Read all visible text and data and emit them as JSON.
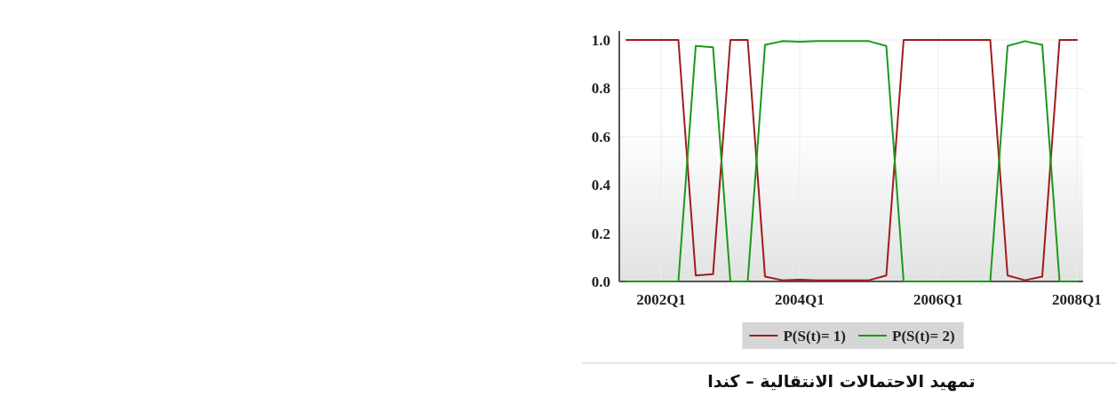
{
  "chart_data": {
    "type": "line",
    "title": "تمهيد الاحتمالات الانتقالية – كندا",
    "categories": [
      null,
      null,
      "2002Q1",
      null,
      null,
      null,
      null,
      null,
      null,
      null,
      "2004Q1",
      null,
      null,
      null,
      null,
      null,
      null,
      null,
      "2006Q1",
      null,
      null,
      null,
      null,
      null,
      null,
      null,
      "2008Q1"
    ],
    "series": [
      {
        "name": "P(S(t)= 1)",
        "color": "#a01c1c",
        "values": [
          1,
          1,
          1,
          1,
          0.025,
          0.03,
          1,
          1,
          0.02,
          0.005,
          0.007,
          0.005,
          0.005,
          0.005,
          0.005,
          0.025,
          1,
          1,
          1,
          1,
          1,
          1,
          0.025,
          0.005,
          0.02,
          1,
          1
        ]
      },
      {
        "name": "P(S(t)= 2)",
        "color": "#1a9a1a",
        "values": [
          0,
          0,
          0,
          0,
          0.975,
          0.97,
          0,
          0,
          0.98,
          0.995,
          0.993,
          0.995,
          0.995,
          0.995,
          0.995,
          0.975,
          0,
          0,
          0,
          0,
          0,
          0,
          0.975,
          0.995,
          0.98,
          0,
          0
        ]
      }
    ],
    "ylim": [
      0,
      1
    ],
    "yticks": [
      {
        "value": 0,
        "label": "0.0"
      },
      {
        "value": 0.2,
        "label": "0.2"
      },
      {
        "value": 0.4,
        "label": "0.4"
      },
      {
        "value": 0.6,
        "label": "0.6"
      },
      {
        "value": 0.8,
        "label": "0.8"
      },
      {
        "value": 1,
        "label": "1.0"
      }
    ],
    "grid": true,
    "legend": "bottom",
    "line_style": "solid"
  }
}
